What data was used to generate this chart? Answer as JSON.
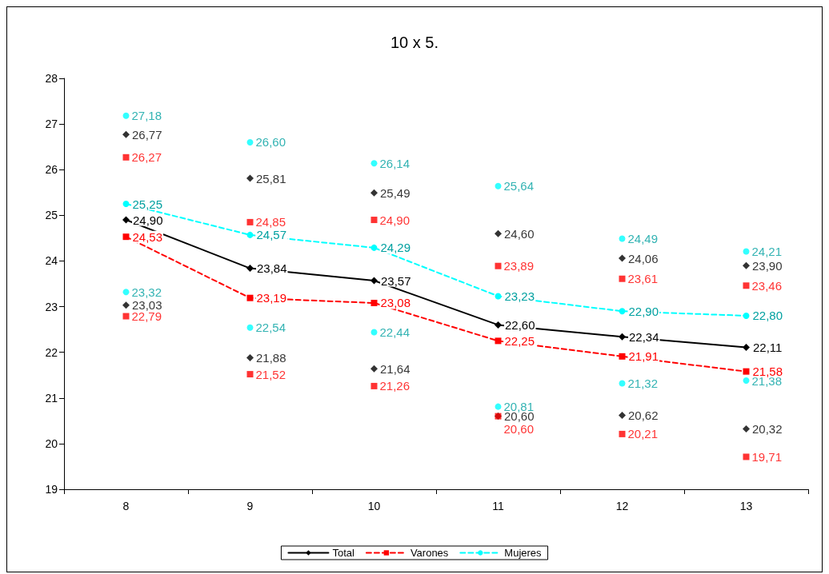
{
  "chart_data": {
    "type": "line",
    "title": "10 x 5.",
    "categories": [
      "8",
      "9",
      "10",
      "11",
      "12",
      "13"
    ],
    "ylim": [
      19,
      28
    ],
    "yticks": [
      19,
      20,
      21,
      22,
      23,
      24,
      25,
      26,
      27,
      28
    ],
    "grid": false,
    "legend": "bottom",
    "series": [
      {
        "name": "Total",
        "color": "#000000",
        "marker": "diamond",
        "line_style": "solid",
        "values": [
          24.9,
          23.84,
          23.57,
          22.6,
          22.34,
          22.11
        ],
        "value_labels": [
          "24,90",
          "23,84",
          "23,57",
          "22,60",
          "22,34",
          "22,11"
        ]
      },
      {
        "name": "Varones",
        "color": "#ff0000",
        "marker": "square",
        "line_style": "dashed",
        "values": [
          24.53,
          23.19,
          23.08,
          22.25,
          21.91,
          21.58
        ],
        "value_labels": [
          "24,53",
          "23,19",
          "23,08",
          "22,25",
          "21,91",
          "21,58"
        ]
      },
      {
        "name": "Mujeres",
        "color": "#00ffff",
        "marker": "circle",
        "line_style": "dashed",
        "values": [
          25.25,
          24.57,
          24.29,
          23.23,
          22.9,
          22.8
        ],
        "value_labels": [
          "25,25",
          "24,57",
          "24,29",
          "23,23",
          "22,90",
          "22,80"
        ]
      },
      {
        "type": "scatter",
        "color": "#000000",
        "marker": "diamond",
        "values": [
          26.77,
          25.81,
          25.49,
          24.6,
          24.06,
          23.9
        ],
        "value_labels": [
          "26,77",
          "25,81",
          "25,49",
          "24,60",
          "24,06",
          "23,90"
        ]
      },
      {
        "type": "scatter",
        "color": "#000000",
        "marker": "diamond",
        "values": [
          23.03,
          21.88,
          21.64,
          20.6,
          20.62,
          20.32
        ],
        "value_labels": [
          "23,03",
          "21,88",
          "21,64",
          "20,60",
          "20,62",
          "20,32"
        ]
      },
      {
        "type": "scatter",
        "color": "#ff0000",
        "marker": "square",
        "values": [
          26.27,
          24.85,
          24.9,
          23.89,
          23.61,
          23.46
        ],
        "value_labels": [
          "26,27",
          "24,85",
          "24,90",
          "23,89",
          "23,61",
          "23,46"
        ]
      },
      {
        "type": "scatter",
        "color": "#ff0000",
        "marker": "square",
        "values": [
          22.79,
          21.52,
          21.26,
          20.6,
          20.21,
          19.71
        ],
        "value_labels": [
          "22,79",
          "21,52",
          "21,26",
          "20,60",
          "20,21",
          "19,71"
        ]
      },
      {
        "type": "scatter",
        "color": "#00ffff",
        "marker": "circle",
        "values": [
          27.18,
          26.6,
          26.14,
          25.64,
          24.49,
          24.21
        ],
        "value_labels": [
          "27,18",
          "26,60",
          "26,14",
          "25,64",
          "24,49",
          "24,21"
        ]
      },
      {
        "type": "scatter",
        "color": "#00ffff",
        "marker": "circle",
        "values": [
          23.32,
          22.54,
          22.44,
          20.81,
          21.32,
          21.38
        ],
        "value_labels": [
          "23,32",
          "22,54",
          "22,44",
          "20,81",
          "21,32",
          "21,38"
        ]
      }
    ]
  }
}
